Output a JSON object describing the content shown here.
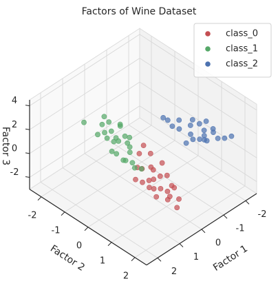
{
  "chart_data": {
    "type": "scatter3d",
    "title": "Factors of Wine Dataset",
    "xlabel": "Factor 1",
    "ylabel": "Factor 2",
    "zlabel": "Factor 3",
    "xlim": [
      -2.5,
      2.5
    ],
    "ylim": [
      -2.5,
      2.5
    ],
    "zlim": [
      -3,
      4.5
    ],
    "xticks": [
      -2,
      -1,
      0,
      1,
      2
    ],
    "yticks": [
      -2,
      -1,
      0,
      1,
      2
    ],
    "zticks": [
      -2,
      0,
      2,
      4
    ],
    "grid": true,
    "legend": "upper right",
    "series": [
      {
        "name": "class_0",
        "color": "#c44e52",
        "x": [
          0.8,
          0.6,
          1.0,
          0.4,
          0.9,
          0.7,
          1.2,
          0.5,
          0.3,
          1.1,
          0.8,
          0.6,
          0.9,
          0.2,
          1.3,
          0.7,
          0.5,
          1.0,
          0.4,
          0.8,
          0.6,
          1.1,
          0.3,
          0.9,
          0.5
        ],
        "y": [
          1.2,
          1.0,
          1.4,
          1.6,
          0.8,
          1.8,
          1.1,
          2.0,
          0.6,
          1.3,
          1.5,
          0.4,
          1.9,
          1.0,
          0.9,
          1.7,
          1.2,
          0.7,
          1.4,
          2.2,
          0.9,
          1.6,
          0.3,
          1.1,
          1.8
        ],
        "z": [
          0.5,
          0.8,
          0.2,
          0.0,
          1.0,
          -0.3,
          0.6,
          -0.5,
          1.3,
          0.3,
          0.1,
          1.4,
          -0.2,
          0.9,
          0.7,
          0.0,
          0.4,
          1.1,
          0.6,
          -0.6,
          0.9,
          -0.1,
          1.6,
          0.4,
          0.2
        ]
      },
      {
        "name": "class_1",
        "color": "#55a868",
        "x": [
          0.7,
          0.9,
          0.5,
          1.0,
          0.6,
          0.8,
          0.4,
          1.1,
          0.7,
          0.3,
          0.9,
          0.6,
          1.2,
          0.5,
          0.8,
          0.7,
          1.0,
          0.4,
          0.6,
          0.9,
          0.8,
          0.5,
          0.7,
          0.3,
          1.0
        ],
        "y": [
          -0.5,
          -0.8,
          -0.2,
          -0.6,
          0.0,
          -1.0,
          -0.4,
          -0.3,
          0.2,
          -0.7,
          0.1,
          -0.9,
          -1.4,
          -0.1,
          -0.5,
          0.3,
          -0.2,
          -0.6,
          -1.1,
          0.0,
          -0.3,
          0.4,
          -0.7,
          -0.3,
          -1.0
        ],
        "z": [
          1.7,
          2.0,
          1.4,
          1.9,
          1.0,
          2.3,
          1.6,
          1.3,
          0.5,
          2.1,
          0.8,
          2.4,
          2.45,
          1.2,
          1.5,
          0.2,
          1.1,
          2.2,
          2.6,
          0.7,
          1.8,
          0.0,
          2.0,
          1.5,
          1.7
        ]
      },
      {
        "name": "class_2",
        "color": "#4c72b0",
        "x": [
          -1.0,
          -1.2,
          -1.5,
          -1.8,
          -1.3,
          -0.9,
          -1.6,
          -2.0,
          -1.1,
          -1.4,
          -1.7,
          -0.8,
          -1.2,
          -1.9,
          -1.5,
          -1.0,
          -1.3,
          -2.1,
          -1.6,
          -0.7,
          -1.4,
          -1.8
        ],
        "y": [
          0.6,
          0.9,
          1.2,
          1.5,
          0.8,
          0.4,
          1.1,
          1.6,
          0.5,
          1.3,
          1.4,
          0.3,
          1.0,
          1.2,
          0.7,
          0.9,
          1.5,
          1.8,
          0.9,
          0.2,
          1.1,
          1.0
        ],
        "z": [
          1.8,
          1.5,
          1.4,
          1.2,
          2.0,
          1.9,
          1.6,
          1.1,
          2.3,
          1.3,
          1.7,
          2.4,
          1.2,
          1.5,
          2.1,
          1.0,
          1.6,
          1.4,
          1.9,
          2.6,
          1.1,
          2.0
        ]
      }
    ]
  }
}
